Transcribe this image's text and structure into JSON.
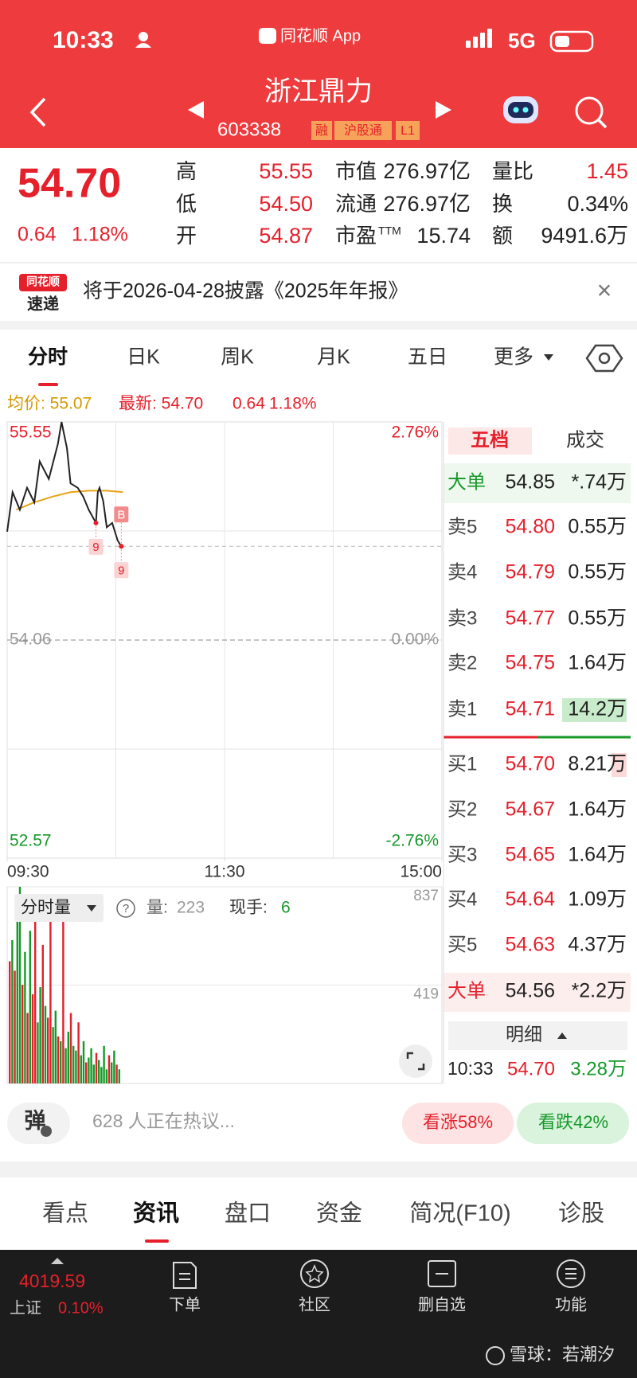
{
  "status_bar": {
    "time": "10:33",
    "app_name": "同花顺 App",
    "network": "5G"
  },
  "header": {
    "name": "浙江鼎力",
    "code": "603338",
    "tags": [
      "融",
      "沪股通",
      "L1"
    ]
  },
  "quote": {
    "price": "54.70",
    "change": "0.64",
    "change_pct": "1.18%",
    "stats": [
      {
        "label": "高",
        "value": "55.55",
        "up": true
      },
      {
        "label": "低",
        "value": "54.50",
        "up": true
      },
      {
        "label": "开",
        "value": "54.87",
        "up": true
      },
      {
        "label": "市值",
        "value": "276.97亿",
        "up": false
      },
      {
        "label": "流通",
        "value": "276.97亿",
        "up": false
      },
      {
        "label": "市盈",
        "sup": "TTM",
        "value": "15.74",
        "up": false
      },
      {
        "label": "量比",
        "value": "1.45",
        "up": true
      },
      {
        "label": "换",
        "value": "0.34%",
        "up": false
      },
      {
        "label": "额",
        "value": "9491.6万",
        "up": false
      }
    ]
  },
  "notice": {
    "logo_top": "同花顺",
    "logo_bottom": "速递",
    "text": "将于2026-04-28披露《2025年年报》",
    "close": "×"
  },
  "tabs": [
    "分时",
    "日K",
    "周K",
    "月K",
    "五日",
    "更多"
  ],
  "info_line": {
    "avg": "均价: 55.07",
    "latest": "最新: 54.70",
    "change": "0.64",
    "pct": "1.18%"
  },
  "intraday": {
    "ylim": [
      52.57,
      55.55
    ],
    "yticks": [
      55.55,
      54.06,
      52.57
    ],
    "y2ticks": [
      {
        "value": 55.55,
        "label": "2.76%"
      },
      {
        "value": 54.06,
        "label": "0.00%"
      },
      {
        "value": 52.57,
        "label": "-2.76%"
      }
    ],
    "xlim": [
      0,
      240
    ],
    "xticks": [
      {
        "value": 0,
        "label": "09:30"
      },
      {
        "value": 120,
        "label": "11:30"
      },
      {
        "value": 240,
        "label": "15:00"
      }
    ],
    "minutes": [
      0,
      3,
      7,
      11,
      15,
      18,
      23,
      28,
      30,
      33,
      35,
      39,
      42,
      45,
      49,
      50,
      51,
      53,
      55,
      58,
      61,
      63
    ],
    "prices": [
      54.8,
      55.07,
      54.95,
      55.1,
      55.0,
      55.28,
      55.16,
      55.4,
      55.55,
      55.37,
      55.13,
      55.1,
      55.04,
      54.95,
      54.86,
      55.07,
      55.1,
      55.01,
      54.83,
      54.86,
      54.74,
      54.7
    ],
    "price_color": "#222222",
    "avg_minutes": [
      5,
      15,
      25,
      35,
      45,
      55,
      64
    ],
    "avg_prices": [
      54.95,
      55.0,
      55.04,
      55.07,
      55.08,
      55.08,
      55.07
    ],
    "avg_color": "#e8a317",
    "markers": [
      {
        "at": 14,
        "label": "9",
        "pos": "below"
      },
      {
        "at": 21,
        "label": "9",
        "pos": "below"
      },
      {
        "at": 21,
        "label": "B",
        "pos": "above"
      }
    ]
  },
  "volume": {
    "title": "分时量",
    "qty_label": "量:",
    "qty": "223",
    "hand_label": "现手:",
    "hand": "6",
    "ylim": [
      0,
      837
    ],
    "yticks": [
      837,
      419
    ],
    "values": [
      520,
      610,
      480,
      700,
      837,
      420,
      560,
      300,
      650,
      380,
      720,
      260,
      410,
      590,
      330,
      280,
      760,
      240,
      310,
      200,
      180,
      690,
      150,
      220,
      300,
      160,
      140,
      260,
      120,
      180,
      90,
      110,
      150,
      80,
      130,
      100,
      70,
      160,
      60,
      120,
      90,
      140,
      80,
      60
    ],
    "up": [
      true,
      false,
      true,
      false,
      false,
      true,
      false,
      true,
      false,
      true,
      true,
      false,
      false,
      true,
      false,
      true,
      true,
      false,
      false,
      true,
      false,
      true,
      false,
      false,
      true,
      false,
      false,
      true,
      false,
      false,
      true,
      false,
      false,
      false,
      true,
      false,
      false,
      false,
      false,
      true,
      false,
      false,
      true,
      false
    ],
    "up_color": "#e5202b",
    "down_color": "#16992a"
  },
  "order_book": {
    "tabs": [
      "五档",
      "成交"
    ],
    "rows": [
      {
        "label": "大单",
        "price": "54.85",
        "vol": "*.74万",
        "color": "#222222"
      },
      {
        "label": "卖5",
        "price": "54.80",
        "vol": "0.55万",
        "color": "#e5202b"
      },
      {
        "label": "卖4",
        "price": "54.79",
        "vol": "0.55万",
        "color": "#e5202b"
      },
      {
        "label": "卖3",
        "price": "54.77",
        "vol": "0.55万",
        "color": "#e5202b"
      },
      {
        "label": "卖2",
        "price": "54.75",
        "vol": "1.64万",
        "color": "#e5202b"
      },
      {
        "label": "卖1",
        "price": "54.71",
        "vol": "14.2万",
        "color": "#e5202b"
      },
      {
        "label": "买1",
        "price": "54.70",
        "vol": "8.21万",
        "color": "#e5202b"
      },
      {
        "label": "买2",
        "price": "54.67",
        "vol": "1.64万",
        "color": "#e5202b"
      },
      {
        "label": "买3",
        "price": "54.65",
        "vol": "1.64万",
        "color": "#e5202b"
      },
      {
        "label": "买4",
        "price": "54.64",
        "vol": "1.09万",
        "color": "#e5202b"
      },
      {
        "label": "买5",
        "price": "54.63",
        "vol": "4.37万",
        "color": "#e5202b"
      },
      {
        "label": "大单",
        "price": "54.56",
        "vol": "*2.2万",
        "color": "#222222"
      }
    ],
    "detail": {
      "title": "明细",
      "time": "10:33",
      "price": "54.70",
      "vol": "3.28万"
    }
  },
  "discussion": {
    "button": "弹",
    "text": "628 人正在热议...",
    "bull": "看涨58%",
    "bear": "看跌42%"
  },
  "bottom_tabs": [
    "看点",
    "资讯",
    "盘口",
    "资金",
    "简况(F10)",
    "诊股"
  ],
  "nav": {
    "index_value": "4019.59",
    "index_name": "上证",
    "index_pct": "0.10%",
    "items": [
      "下单",
      "社区",
      "删自选",
      "功能"
    ]
  },
  "watermark": "雪球：若潮汐"
}
